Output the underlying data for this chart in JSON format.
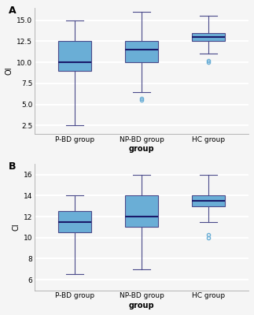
{
  "panel_A": {
    "ylabel": "OI",
    "xlabel": "group",
    "ylim": [
      1.5,
      16.5
    ],
    "yticks": [
      2.5,
      5.0,
      7.5,
      10.0,
      12.5,
      15.0
    ],
    "groups": [
      "P-BD group",
      "NP-BD group",
      "HC group"
    ],
    "boxes": [
      {
        "med": 10.0,
        "q1": 9.0,
        "q3": 12.5,
        "whislo": 2.5,
        "whishi": 15.0,
        "fliers": []
      },
      {
        "med": 11.5,
        "q1": 10.0,
        "q3": 12.5,
        "whislo": 6.5,
        "whishi": 16.0,
        "fliers": [
          5.7,
          5.5
        ]
      },
      {
        "med": 13.0,
        "q1": 12.5,
        "q3": 13.5,
        "whislo": 11.0,
        "whishi": 15.5,
        "fliers": [
          10.0,
          10.2
        ]
      }
    ]
  },
  "panel_B": {
    "ylabel": "CI",
    "xlabel": "group",
    "ylim": [
      5.0,
      17.0
    ],
    "yticks": [
      6,
      8,
      10,
      12,
      14,
      16
    ],
    "groups": [
      "P-BD group",
      "NP-BD group",
      "HC group"
    ],
    "boxes": [
      {
        "med": 11.5,
        "q1": 10.5,
        "q3": 12.5,
        "whislo": 6.5,
        "whishi": 14.0,
        "fliers": []
      },
      {
        "med": 12.0,
        "q1": 11.0,
        "q3": 14.0,
        "whislo": 7.0,
        "whishi": 16.0,
        "fliers": []
      },
      {
        "med": 13.5,
        "q1": 13.0,
        "q3": 14.0,
        "whislo": 11.5,
        "whishi": 16.0,
        "fliers": [
          10.3,
          10.0
        ]
      }
    ]
  },
  "box_facecolor": "#6aaed6",
  "box_edgecolor": "#4a4a8a",
  "median_color": "#1a1a6a",
  "whisker_color": "#4a4a8a",
  "flier_color": "#6aaed6",
  "bg_color": "#f5f5f5",
  "grid_color": "#ffffff",
  "label_A": "A",
  "label_B": "B",
  "title_fontsize": 8,
  "label_fontsize": 7,
  "tick_fontsize": 6.5
}
